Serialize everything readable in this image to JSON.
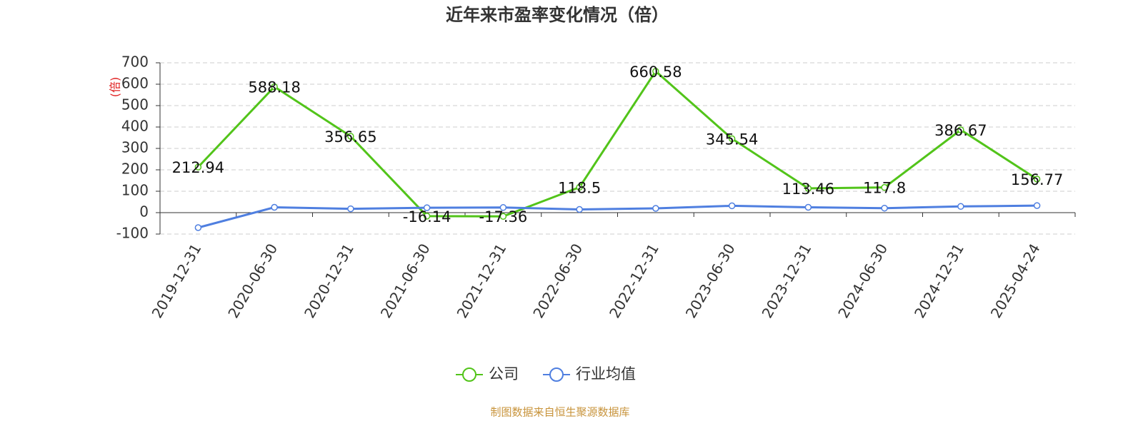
{
  "chart_data": {
    "type": "line",
    "title": "近年来市盈率变化情况（倍）",
    "y_label": "(倍)",
    "source": "制图数据来自恒生聚源数据库",
    "categories": [
      "2019-12-31",
      "2020-06-30",
      "2020-12-31",
      "2021-06-30",
      "2021-12-31",
      "2022-06-30",
      "2022-12-31",
      "2023-06-30",
      "2023-12-31",
      "2024-06-30",
      "2024-12-31",
      "2025-04-24"
    ],
    "series": [
      {
        "name": "公司",
        "color": "#52c41a",
        "values": [
          212.94,
          588.18,
          356.65,
          -16.14,
          -17.36,
          118.5,
          660.58,
          345.54,
          113.46,
          117.8,
          386.67,
          156.77
        ],
        "show_labels": true
      },
      {
        "name": "行业均值",
        "color": "#4f7fe0",
        "values": [
          -70,
          25,
          18,
          23,
          24,
          15,
          20,
          32,
          25,
          21,
          29,
          33
        ],
        "show_labels": false
      }
    ],
    "ylim": [
      -100,
      700
    ],
    "yticks": [
      -100,
      0,
      100,
      200,
      300,
      400,
      500,
      600,
      700
    ],
    "grid": true,
    "legend": "bottom"
  }
}
